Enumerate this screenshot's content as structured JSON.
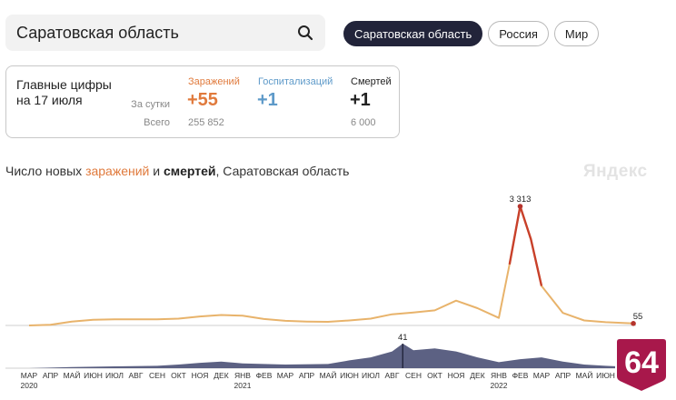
{
  "search": {
    "value": "Саратовская область"
  },
  "region_tabs": [
    {
      "label": "Саратовская область",
      "active": true
    },
    {
      "label": "Россия",
      "active": false
    },
    {
      "label": "Мир",
      "active": false
    }
  ],
  "summary": {
    "title_line1": "Главные цифры",
    "title_line2": "на 17 июля",
    "per_day_label": "За сутки",
    "total_label": "Всего",
    "columns": [
      {
        "header": "Заражений",
        "day": "+55",
        "total": "255 852",
        "color": "#e07a3c"
      },
      {
        "header": "Госпитализаций",
        "day": "+1",
        "total": "",
        "color": "#5e9ac9"
      },
      {
        "header": "Смертей",
        "day": "+1",
        "total": "6 000",
        "color": "#222222"
      }
    ]
  },
  "chart": {
    "title_pre": "Число новых ",
    "title_infections": "заражений",
    "title_mid": " и ",
    "title_deaths": "смертей",
    "title_post": ", Саратовская область",
    "brand": "Яндекс"
  },
  "badge": {
    "text": "64",
    "color": "#a8184b"
  },
  "chart_data": {
    "type": "area",
    "infections_color": "#e8b36b",
    "infections_peak_color": "#c8402a",
    "deaths_color": "#4e5478",
    "x_labels": [
      "МАР",
      "АПР",
      "МАЙ",
      "ИЮН",
      "ИЮЛ",
      "АВГ",
      "СЕН",
      "ОКТ",
      "НОЯ",
      "ДЕК",
      "ЯНВ",
      "ФЕВ",
      "МАР",
      "АПР",
      "МАЙ",
      "ИЮН",
      "ИЮЛ",
      "АВГ",
      "СЕН",
      "ОКТ",
      "НОЯ",
      "ДЕК",
      "ЯНВ",
      "ФЕВ",
      "МАР",
      "АПР",
      "МАЙ",
      "ИЮН"
    ],
    "year_labels": [
      {
        "month_index": 0,
        "year": "2020"
      },
      {
        "month_index": 10,
        "year": "2021"
      },
      {
        "month_index": 22,
        "year": "2022"
      }
    ],
    "series": [
      {
        "name": "заражений",
        "x": [
          0,
          1,
          2,
          3,
          4,
          5,
          6,
          7,
          8,
          9,
          10,
          11,
          12,
          13,
          14,
          15,
          16,
          17,
          18,
          19,
          20,
          21,
          22,
          22.5,
          23,
          23.5,
          24,
          25,
          26,
          27,
          28.3
        ],
        "values": [
          0,
          20,
          110,
          160,
          170,
          170,
          170,
          190,
          250,
          290,
          270,
          180,
          130,
          110,
          100,
          140,
          190,
          310,
          360,
          420,
          690,
          480,
          210,
          1700,
          3313,
          2400,
          1100,
          350,
          140,
          90,
          55
        ]
      },
      {
        "name": "смертей",
        "x": [
          0,
          2,
          4,
          6,
          7,
          8,
          9,
          10,
          12,
          14,
          15,
          16,
          17,
          17.5,
          18,
          19,
          20,
          21,
          22,
          23,
          24,
          25,
          26,
          27,
          28.3
        ],
        "values": [
          0,
          2,
          3,
          4,
          6,
          9,
          11,
          8,
          6,
          7,
          13,
          18,
          28,
          41,
          30,
          33,
          28,
          18,
          10,
          15,
          18,
          11,
          6,
          4,
          2
        ]
      }
    ],
    "annotations": [
      {
        "series": "заражений",
        "label": "3 313",
        "x": 23,
        "value": 3313
      },
      {
        "series": "заражений",
        "label": "55",
        "x": 28.3,
        "value": 55
      },
      {
        "series": "смертей",
        "label": "41",
        "x": 17.5,
        "value": 41
      }
    ]
  }
}
